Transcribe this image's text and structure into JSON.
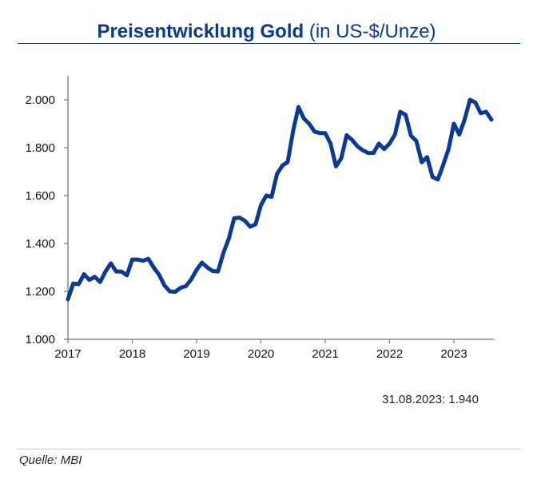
{
  "chart_data": {
    "type": "line",
    "title": "Preisentwicklung Gold",
    "subtitle": "(in US-$/Unze)",
    "xlabel": "",
    "ylabel": "",
    "ylim": [
      1000,
      2100
    ],
    "xlim": [
      "2017-01",
      "2023-09"
    ],
    "grid": false,
    "line_color": "#0a3a96",
    "y_ticks": [
      {
        "value": 1000,
        "label": "1.000"
      },
      {
        "value": 1200,
        "label": "1.200"
      },
      {
        "value": 1400,
        "label": "1.400"
      },
      {
        "value": 1600,
        "label": "1.600"
      },
      {
        "value": 1800,
        "label": "1.800"
      },
      {
        "value": 2000,
        "label": "2.000"
      }
    ],
    "x_ticks": [
      "2017",
      "2018",
      "2019",
      "2020",
      "2021",
      "2022",
      "2023"
    ],
    "x": [
      "2017-01",
      "2017-02",
      "2017-03",
      "2017-04",
      "2017-05",
      "2017-06",
      "2017-07",
      "2017-08",
      "2017-09",
      "2017-10",
      "2017-11",
      "2017-12",
      "2018-01",
      "2018-02",
      "2018-03",
      "2018-04",
      "2018-05",
      "2018-06",
      "2018-07",
      "2018-08",
      "2018-09",
      "2018-10",
      "2018-11",
      "2018-12",
      "2019-01",
      "2019-02",
      "2019-03",
      "2019-04",
      "2019-05",
      "2019-06",
      "2019-07",
      "2019-08",
      "2019-09",
      "2019-10",
      "2019-11",
      "2019-12",
      "2020-01",
      "2020-02",
      "2020-03",
      "2020-04",
      "2020-05",
      "2020-06",
      "2020-07",
      "2020-08",
      "2020-09",
      "2020-10",
      "2020-11",
      "2020-12",
      "2021-01",
      "2021-02",
      "2021-03",
      "2021-04",
      "2021-05",
      "2021-06",
      "2021-07",
      "2021-08",
      "2021-09",
      "2021-10",
      "2021-11",
      "2021-12",
      "2022-01",
      "2022-02",
      "2022-03",
      "2022-04",
      "2022-05",
      "2022-06",
      "2022-07",
      "2022-08",
      "2022-09",
      "2022-10",
      "2022-11",
      "2022-12",
      "2023-01",
      "2023-02",
      "2023-03",
      "2023-04",
      "2023-05",
      "2023-06",
      "2023-07",
      "2023-08"
    ],
    "values": [
      1167,
      1233,
      1230,
      1272,
      1248,
      1261,
      1239,
      1283,
      1317,
      1283,
      1283,
      1267,
      1333,
      1333,
      1328,
      1336,
      1300,
      1270,
      1225,
      1200,
      1198,
      1215,
      1222,
      1250,
      1290,
      1320,
      1300,
      1285,
      1283,
      1360,
      1420,
      1505,
      1508,
      1495,
      1470,
      1480,
      1560,
      1600,
      1595,
      1690,
      1725,
      1740,
      1870,
      1970,
      1922,
      1900,
      1867,
      1861,
      1861,
      1817,
      1722,
      1756,
      1852,
      1833,
      1806,
      1789,
      1778,
      1778,
      1817,
      1794,
      1817,
      1855,
      1950,
      1937,
      1850,
      1828,
      1739,
      1761,
      1678,
      1667,
      1728,
      1794,
      1900,
      1855,
      1917,
      2000,
      1989,
      1944,
      1950,
      1917
    ]
  },
  "annotation": "31.08.2023: 1.940",
  "source": "Quelle: MBI"
}
